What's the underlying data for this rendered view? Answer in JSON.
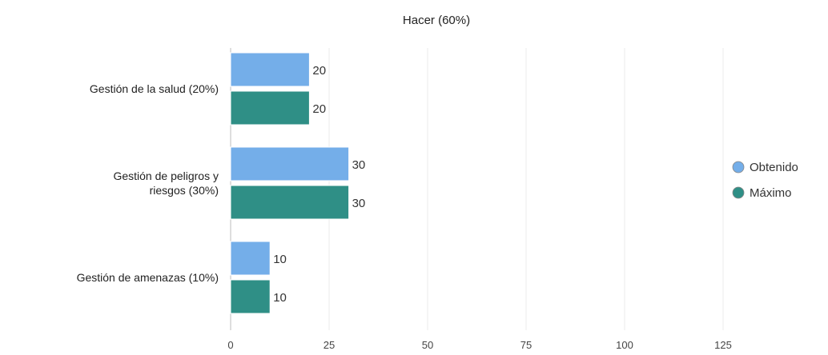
{
  "chart_data": {
    "type": "bar",
    "orientation": "horizontal",
    "title": "Hacer (60%)",
    "categories": [
      [
        "Gestión de la salud (20%)"
      ],
      [
        "Gestión de peligros y",
        "riesgos (30%)"
      ],
      [
        "Gestión de amenazas (10%)"
      ]
    ],
    "series": [
      {
        "name": "Obtenido",
        "values": [
          20,
          30,
          10
        ],
        "color": "#74aee9"
      },
      {
        "name": "Máximo",
        "values": [
          20,
          30,
          10
        ],
        "color": "#2f8f86"
      }
    ],
    "xlim": [
      0,
      150
    ],
    "xticks": [
      0,
      25,
      50,
      75,
      100,
      125
    ],
    "grid": true,
    "legend_position": "right"
  }
}
